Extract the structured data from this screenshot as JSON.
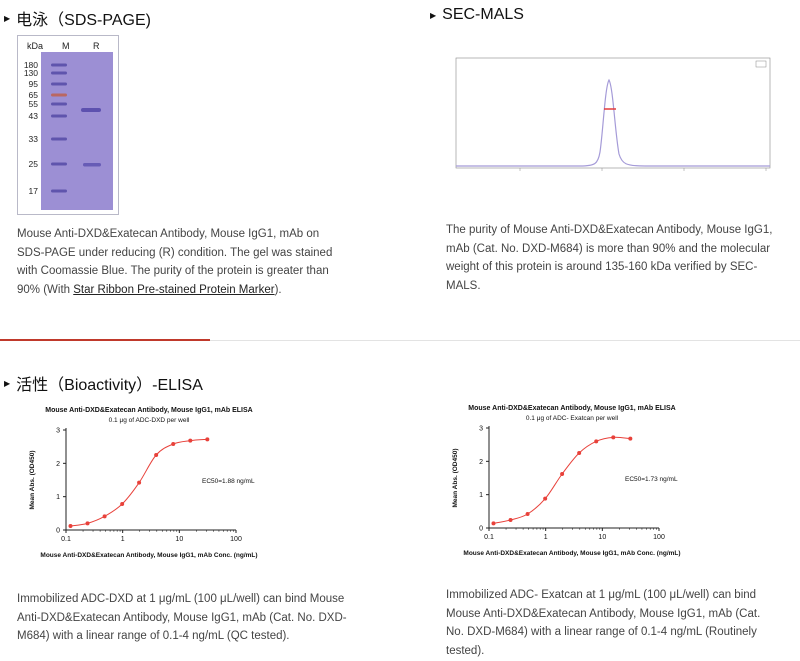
{
  "sections": {
    "sds": {
      "title": "电泳（SDS-PAGE)",
      "gel": {
        "kda_label": "kDa",
        "lane_m": "M",
        "lane_r": "R",
        "markers": [
          "180",
          "130",
          "95",
          "65",
          "55",
          "43",
          "33",
          "25",
          "17"
        ]
      },
      "desc_pre": "Mouse Anti-DXD&Exatecan Antibody, Mouse IgG1, mAb on SDS-PAGE under reducing (R) condition. The gel was stained with Coomassie Blue. The purity of the protein is greater than 90% (With ",
      "desc_link": "Star Ribbon Pre-stained Protein Marker",
      "desc_post": ")."
    },
    "secmals": {
      "title": "SEC-MALS",
      "desc": "The purity of Mouse Anti-DXD&Exatecan Antibody, Mouse IgG1, mAb (Cat. No. DXD-M684) is more than 90% and the molecular weight of this protein is around 135-160 kDa verified by SEC-MALS."
    },
    "elisa": {
      "title": "活性（Bioactivity）-ELISA",
      "desc_left": "Immobilized ADC-DXD at 1 μg/mL (100 μL/well) can bind Mouse Anti-DXD&Exatecan Antibody, Mouse IgG1, mAb (Cat. No. DXD-M684) with a linear range of 0.1-4 ng/mL (QC tested).",
      "desc_right": "Immobilized ADC- Exatcan at 1 μg/mL (100 μL/well) can bind Mouse Anti-DXD&Exatecan Antibody, Mouse IgG1, mAb (Cat. No. DXD-M684) with a linear range of 0.1-4 ng/mL (Routinely tested)."
    }
  },
  "chart_data": [
    {
      "type": "line",
      "title": "Mouse Anti-DXD&Exatecan Antibody, Mouse IgG1, mAb ELISA",
      "subtitle": "0.1 μg of ADC-DXD per well",
      "xlabel": "Mouse Anti-DXD&Exatecan Antibody, Mouse IgG1, mAb Conc. (ng/mL)",
      "ylabel": "Mean Abs. (OD450)",
      "xscale": "log",
      "xlim": [
        0.1,
        100
      ],
      "ylim": [
        0,
        3
      ],
      "xticks": [
        "0.1",
        "1",
        "10",
        "100"
      ],
      "yticks": [
        "0",
        "1",
        "2",
        "3"
      ],
      "annotation": "EC50=1.88 ng/mL",
      "color": "#e8413a",
      "x": [
        0.12,
        0.24,
        0.48,
        0.98,
        1.95,
        3.9,
        7.8,
        15.6,
        31.2
      ],
      "y": [
        0.12,
        0.2,
        0.41,
        0.78,
        1.42,
        2.25,
        2.58,
        2.68,
        2.72
      ]
    },
    {
      "type": "line",
      "title": "Mouse Anti-DXD&Exatecan Antibody, Mouse IgG1, mAb ELISA",
      "subtitle": "0.1 μg of ADC- Exatcan per well",
      "xlabel": "Mouse Anti-DXD&Exatecan Antibody, Mouse IgG1, mAb Conc. (ng/mL)",
      "ylabel": "Mean Abs. (OD450)",
      "xscale": "log",
      "xlim": [
        0.1,
        100
      ],
      "ylim": [
        0,
        3
      ],
      "xticks": [
        "0.1",
        "1",
        "10",
        "100"
      ],
      "yticks": [
        "0",
        "1",
        "2",
        "3"
      ],
      "annotation": "EC50=1.73 ng/mL",
      "color": "#e8413a",
      "x": [
        0.12,
        0.24,
        0.48,
        0.98,
        1.95,
        3.9,
        7.8,
        15.6,
        31.2
      ],
      "y": [
        0.14,
        0.24,
        0.42,
        0.88,
        1.62,
        2.25,
        2.6,
        2.72,
        2.68
      ]
    }
  ]
}
